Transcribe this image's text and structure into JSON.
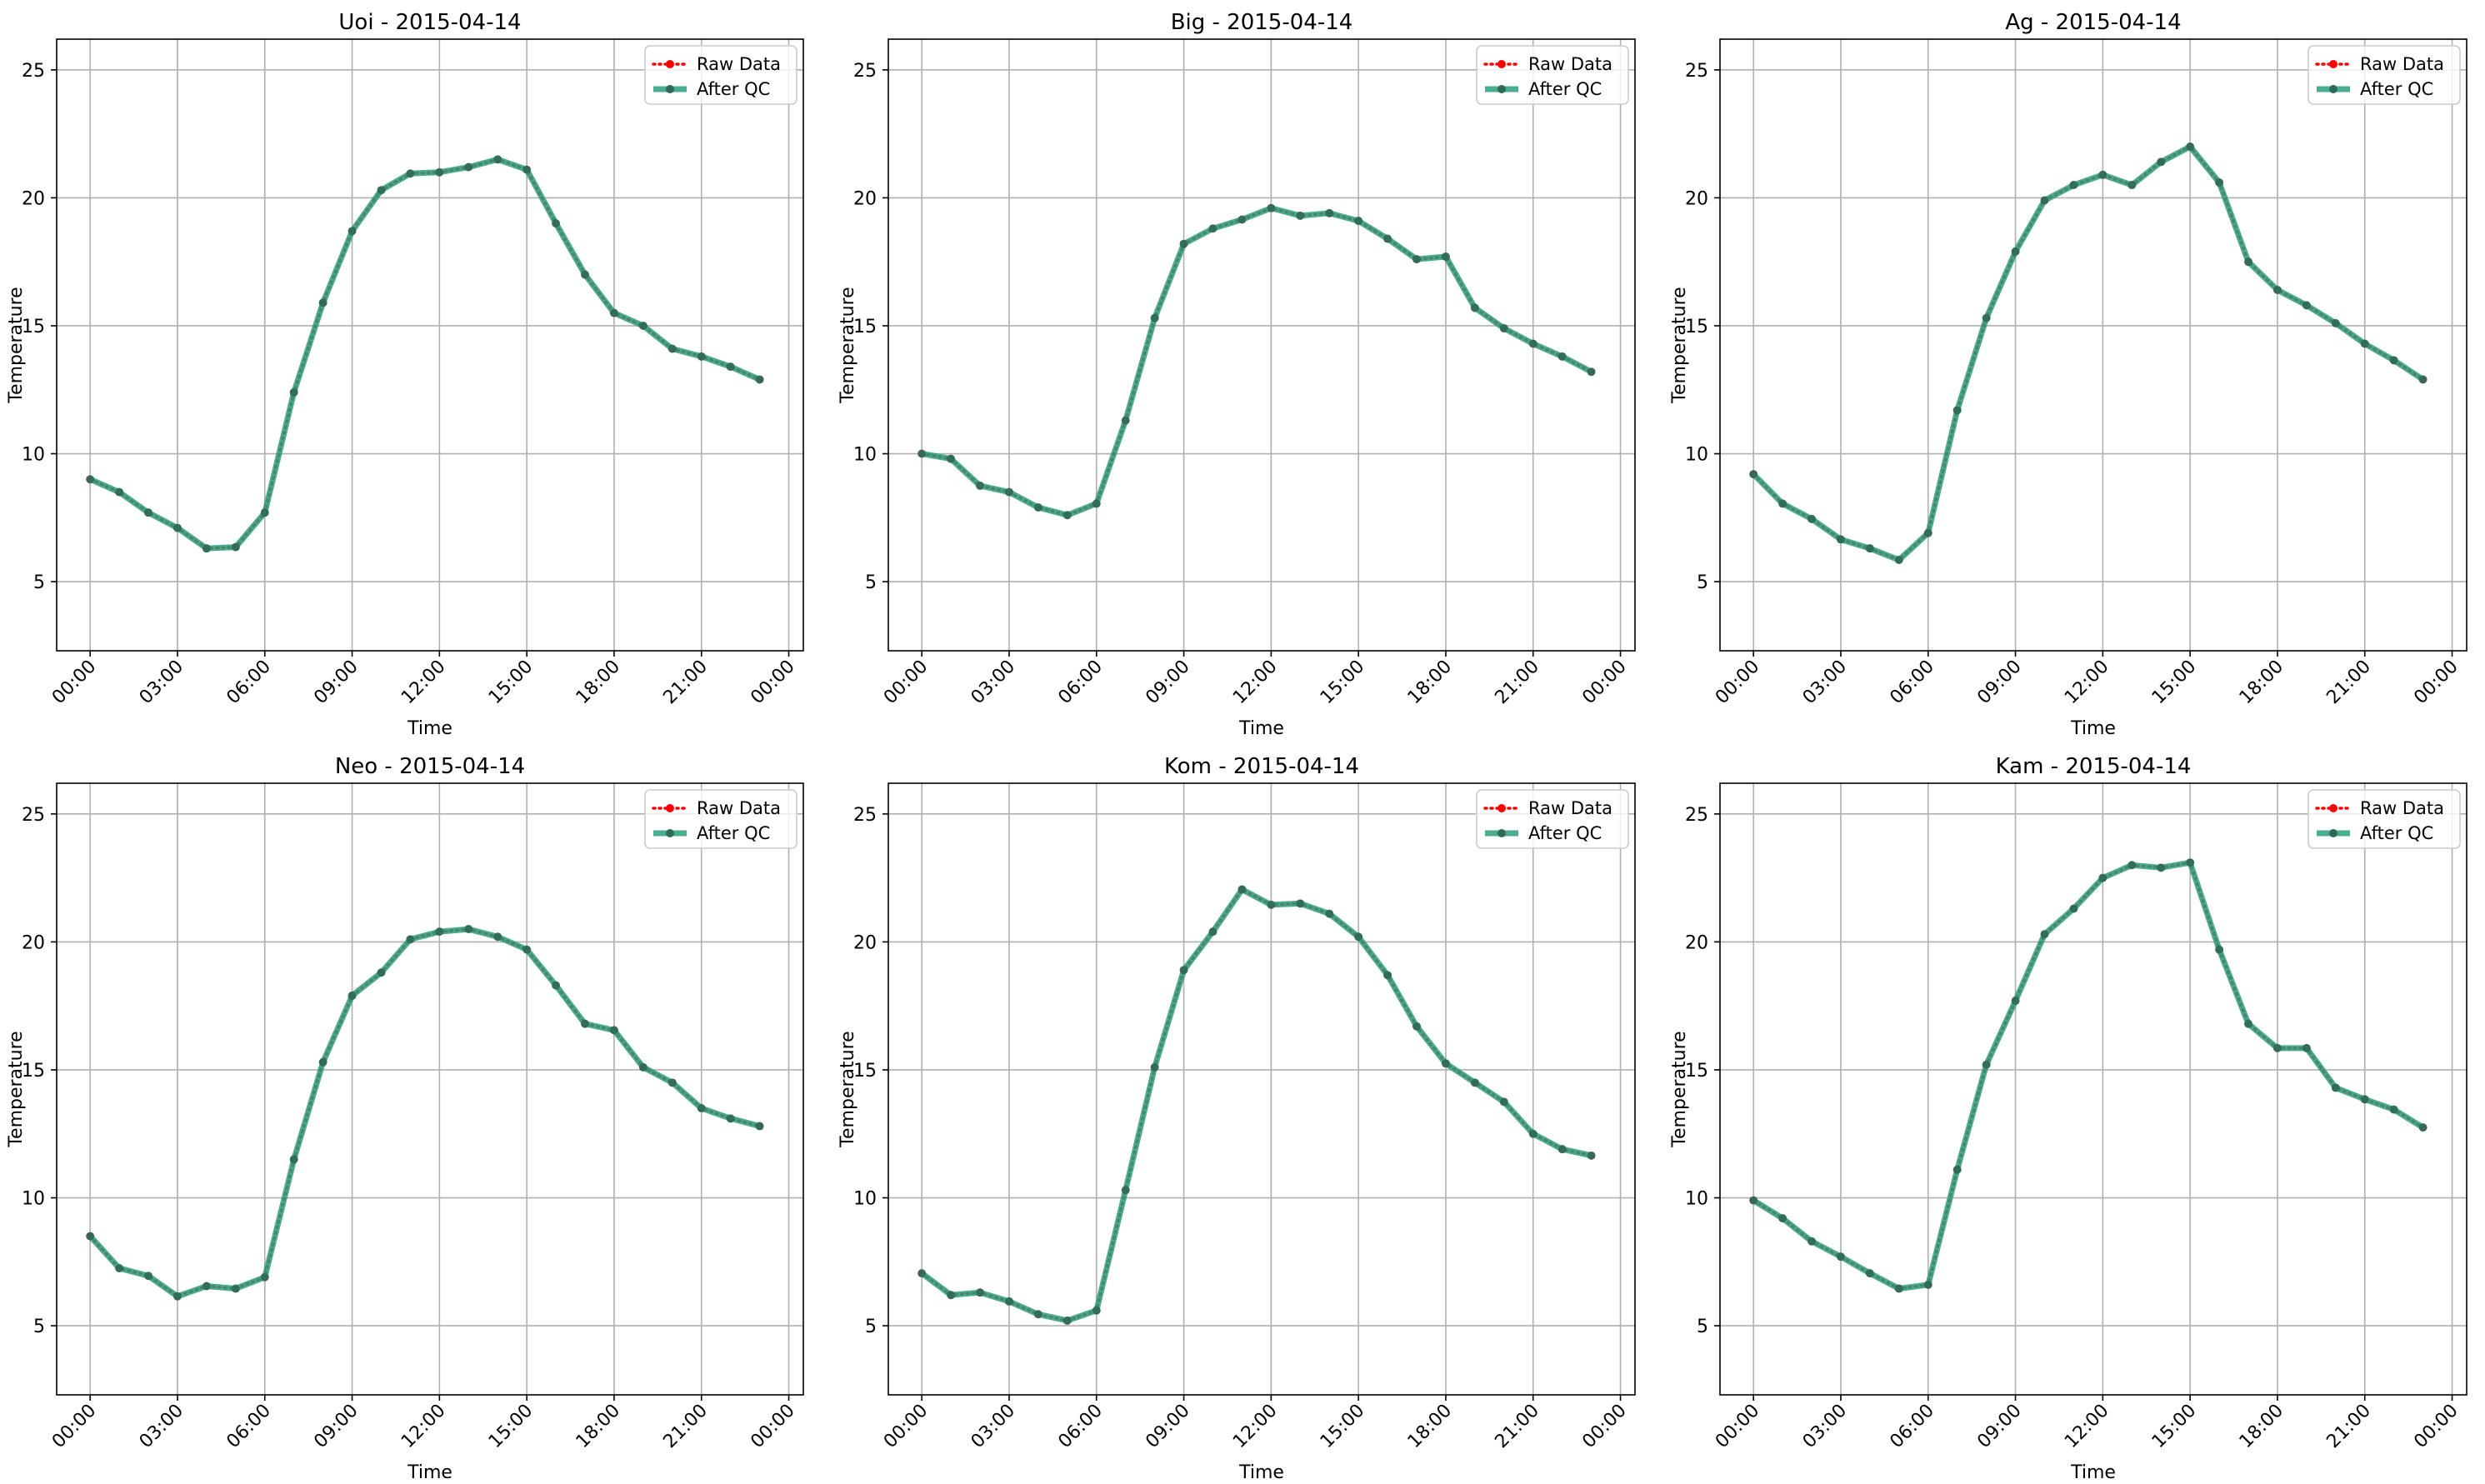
{
  "chart_data": [
    {
      "type": "line",
      "title": "Uoi - 2015-04-14",
      "xlabel": "Time",
      "ylabel": "Temperature",
      "ylim": [
        2.3,
        26.2
      ],
      "yticks": [
        5,
        10,
        15,
        20,
        25
      ],
      "xticks": [
        "00:00",
        "03:00",
        "06:00",
        "09:00",
        "12:00",
        "15:00",
        "18:00",
        "21:00",
        "00:00"
      ],
      "x_hours": [
        0,
        1,
        2,
        3,
        4,
        5,
        6,
        7,
        8,
        9,
        10,
        11,
        12,
        13,
        14,
        15,
        16,
        17,
        18,
        19,
        20,
        21,
        22,
        23
      ],
      "grid": true,
      "legend": "top-right",
      "series": [
        {
          "name": "Raw Data",
          "color": "#ff0000",
          "style": "dotted",
          "values": [
            9.0,
            8.5,
            7.7,
            7.1,
            6.3,
            6.35,
            7.7,
            12.4,
            15.9,
            18.7,
            20.3,
            20.95,
            21.0,
            21.2,
            21.5,
            21.1,
            19.0,
            17.0,
            15.5,
            15.0,
            14.1,
            13.8,
            13.4,
            12.9
          ]
        },
        {
          "name": "After QC",
          "color": "#2a9d7c",
          "style": "solid",
          "values": [
            9.0,
            8.5,
            7.7,
            7.1,
            6.3,
            6.35,
            7.7,
            12.4,
            15.9,
            18.7,
            20.3,
            20.95,
            21.0,
            21.2,
            21.5,
            21.1,
            19.0,
            17.0,
            15.5,
            15.0,
            14.1,
            13.8,
            13.4,
            12.9
          ]
        }
      ]
    },
    {
      "type": "line",
      "title": "Big - 2015-04-14",
      "xlabel": "Time",
      "ylabel": "Temperature",
      "ylim": [
        2.3,
        26.2
      ],
      "yticks": [
        5,
        10,
        15,
        20,
        25
      ],
      "xticks": [
        "00:00",
        "03:00",
        "06:00",
        "09:00",
        "12:00",
        "15:00",
        "18:00",
        "21:00",
        "00:00"
      ],
      "x_hours": [
        0,
        1,
        2,
        3,
        4,
        5,
        6,
        7,
        8,
        9,
        10,
        11,
        12,
        13,
        14,
        15,
        16,
        17,
        18,
        19,
        20,
        21,
        22,
        23
      ],
      "grid": true,
      "legend": "top-right",
      "series": [
        {
          "name": "Raw Data",
          "color": "#ff0000",
          "style": "dotted",
          "values": [
            10.0,
            9.8,
            8.75,
            8.5,
            7.9,
            7.6,
            8.05,
            11.3,
            15.3,
            18.2,
            18.8,
            19.15,
            19.6,
            19.3,
            19.4,
            19.1,
            18.4,
            17.6,
            17.7,
            15.7,
            14.9,
            14.3,
            13.8,
            13.2
          ]
        },
        {
          "name": "After QC",
          "color": "#2a9d7c",
          "style": "solid",
          "values": [
            10.0,
            9.8,
            8.75,
            8.5,
            7.9,
            7.6,
            8.05,
            11.3,
            15.3,
            18.2,
            18.8,
            19.15,
            19.6,
            19.3,
            19.4,
            19.1,
            18.4,
            17.6,
            17.7,
            15.7,
            14.9,
            14.3,
            13.8,
            13.2
          ]
        }
      ]
    },
    {
      "type": "line",
      "title": "Ag - 2015-04-14",
      "xlabel": "Time",
      "ylabel": "Temperature",
      "ylim": [
        2.3,
        26.2
      ],
      "yticks": [
        5,
        10,
        15,
        20,
        25
      ],
      "xticks": [
        "00:00",
        "03:00",
        "06:00",
        "09:00",
        "12:00",
        "15:00",
        "18:00",
        "21:00",
        "00:00"
      ],
      "x_hours": [
        0,
        1,
        2,
        3,
        4,
        5,
        6,
        7,
        8,
        9,
        10,
        11,
        12,
        13,
        14,
        15,
        16,
        17,
        18,
        19,
        20,
        21,
        22,
        23
      ],
      "grid": true,
      "legend": "top-right",
      "series": [
        {
          "name": "Raw Data",
          "color": "#ff0000",
          "style": "dotted",
          "values": [
            9.2,
            8.05,
            7.45,
            6.65,
            6.3,
            5.85,
            6.9,
            11.7,
            15.3,
            17.9,
            19.9,
            20.5,
            20.9,
            20.5,
            21.4,
            22.0,
            20.6,
            17.5,
            16.4,
            15.8,
            15.1,
            14.3,
            13.65,
            12.9
          ]
        },
        {
          "name": "After QC",
          "color": "#2a9d7c",
          "style": "solid",
          "values": [
            9.2,
            8.05,
            7.45,
            6.65,
            6.3,
            5.85,
            6.9,
            11.7,
            15.3,
            17.9,
            19.9,
            20.5,
            20.9,
            20.5,
            21.4,
            22.0,
            20.6,
            17.5,
            16.4,
            15.8,
            15.1,
            14.3,
            13.65,
            12.9
          ]
        }
      ]
    },
    {
      "type": "line",
      "title": "Neo - 2015-04-14",
      "xlabel": "Time",
      "ylabel": "Temperature",
      "ylim": [
        2.3,
        26.2
      ],
      "yticks": [
        5,
        10,
        15,
        20,
        25
      ],
      "xticks": [
        "00:00",
        "03:00",
        "06:00",
        "09:00",
        "12:00",
        "15:00",
        "18:00",
        "21:00",
        "00:00"
      ],
      "x_hours": [
        0,
        1,
        2,
        3,
        4,
        5,
        6,
        7,
        8,
        9,
        10,
        11,
        12,
        13,
        14,
        15,
        16,
        17,
        18,
        19,
        20,
        21,
        22,
        23
      ],
      "grid": true,
      "legend": "top-right",
      "series": [
        {
          "name": "Raw Data",
          "color": "#ff0000",
          "style": "dotted",
          "values": [
            8.5,
            7.25,
            6.95,
            6.15,
            6.55,
            6.45,
            6.9,
            11.5,
            15.3,
            17.9,
            18.8,
            20.1,
            20.4,
            20.5,
            20.2,
            19.7,
            18.3,
            16.8,
            16.55,
            15.1,
            14.5,
            13.5,
            13.1,
            12.8
          ]
        },
        {
          "name": "After QC",
          "color": "#2a9d7c",
          "style": "solid",
          "values": [
            8.5,
            7.25,
            6.95,
            6.15,
            6.55,
            6.45,
            6.9,
            11.5,
            15.3,
            17.9,
            18.8,
            20.1,
            20.4,
            20.5,
            20.2,
            19.7,
            18.3,
            16.8,
            16.55,
            15.1,
            14.5,
            13.5,
            13.1,
            12.8
          ]
        }
      ]
    },
    {
      "type": "line",
      "title": "Kom - 2015-04-14",
      "xlabel": "Time",
      "ylabel": "Temperature",
      "ylim": [
        2.3,
        26.2
      ],
      "yticks": [
        5,
        10,
        15,
        20,
        25
      ],
      "xticks": [
        "00:00",
        "03:00",
        "06:00",
        "09:00",
        "12:00",
        "15:00",
        "18:00",
        "21:00",
        "00:00"
      ],
      "x_hours": [
        0,
        1,
        2,
        3,
        4,
        5,
        6,
        7,
        8,
        9,
        10,
        11,
        12,
        13,
        14,
        15,
        16,
        17,
        18,
        19,
        20,
        21,
        22,
        23
      ],
      "grid": true,
      "legend": "top-right",
      "series": [
        {
          "name": "Raw Data",
          "color": "#ff0000",
          "style": "dotted",
          "values": [
            7.05,
            6.2,
            6.3,
            5.95,
            5.45,
            5.2,
            5.6,
            10.3,
            15.1,
            18.9,
            20.4,
            22.05,
            21.45,
            21.5,
            21.1,
            20.2,
            18.7,
            16.7,
            15.25,
            14.5,
            13.75,
            12.5,
            11.9,
            11.65
          ]
        },
        {
          "name": "After QC",
          "color": "#2a9d7c",
          "style": "solid",
          "values": [
            7.05,
            6.2,
            6.3,
            5.95,
            5.45,
            5.2,
            5.6,
            10.3,
            15.1,
            18.9,
            20.4,
            22.05,
            21.45,
            21.5,
            21.1,
            20.2,
            18.7,
            16.7,
            15.25,
            14.5,
            13.75,
            12.5,
            11.9,
            11.65
          ]
        }
      ]
    },
    {
      "type": "line",
      "title": "Kam - 2015-04-14",
      "xlabel": "Time",
      "ylabel": "Temperature",
      "ylim": [
        2.3,
        26.2
      ],
      "yticks": [
        5,
        10,
        15,
        20,
        25
      ],
      "xticks": [
        "00:00",
        "03:00",
        "06:00",
        "09:00",
        "12:00",
        "15:00",
        "18:00",
        "21:00",
        "00:00"
      ],
      "x_hours": [
        0,
        1,
        2,
        3,
        4,
        5,
        6,
        7,
        8,
        9,
        10,
        11,
        12,
        13,
        14,
        15,
        16,
        17,
        18,
        19,
        20,
        21,
        22,
        23
      ],
      "grid": true,
      "legend": "top-right",
      "series": [
        {
          "name": "Raw Data",
          "color": "#ff0000",
          "style": "dotted",
          "values": [
            9.9,
            9.2,
            8.3,
            7.7,
            7.05,
            6.45,
            6.6,
            11.1,
            15.2,
            17.7,
            20.3,
            21.3,
            22.5,
            23.0,
            22.9,
            23.1,
            19.7,
            16.8,
            15.85,
            15.85,
            14.3,
            13.85,
            13.45,
            12.75
          ]
        },
        {
          "name": "After QC",
          "color": "#2a9d7c",
          "style": "solid",
          "values": [
            9.9,
            9.2,
            8.3,
            7.7,
            7.05,
            6.45,
            6.6,
            11.1,
            15.2,
            17.7,
            20.3,
            21.3,
            22.5,
            23.0,
            22.9,
            23.1,
            19.7,
            16.8,
            15.85,
            15.85,
            14.3,
            13.85,
            13.45,
            12.75
          ]
        }
      ]
    }
  ]
}
